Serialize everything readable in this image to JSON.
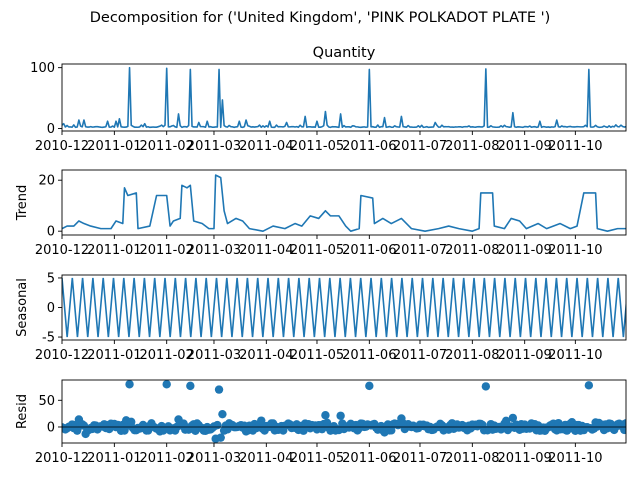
{
  "suptitle": "Decomposition for ('United Kingdom', 'PINK  POLKADOT PLATE ')",
  "chart_data": [
    {
      "type": "line",
      "title": "Quantity",
      "ylabel": "",
      "yticks": [
        0,
        100
      ],
      "ylim": [
        -4,
        106
      ],
      "xlim": [
        "2010-12-01",
        "2011-10-31"
      ],
      "xticks": [
        "2010-12",
        "2011-01",
        "2011-02",
        "2011-03",
        "2011-04",
        "2011-05",
        "2011-06",
        "2011-07",
        "2011-08",
        "2011-09",
        "2011-10"
      ],
      "color": "#1f77b4",
      "baseline": 2,
      "spikes": [
        {
          "x": "2010-12-02",
          "y": 8
        },
        {
          "x": "2010-12-08",
          "y": 6
        },
        {
          "x": "2010-12-11",
          "y": 14
        },
        {
          "x": "2010-12-14",
          "y": 14
        },
        {
          "x": "2010-12-28",
          "y": 12
        },
        {
          "x": "2011-01-02",
          "y": 12
        },
        {
          "x": "2011-01-04",
          "y": 16
        },
        {
          "x": "2011-01-10",
          "y": 100
        },
        {
          "x": "2011-01-19",
          "y": 8
        },
        {
          "x": "2011-02-01",
          "y": 99
        },
        {
          "x": "2011-02-08",
          "y": 24
        },
        {
          "x": "2011-02-15",
          "y": 97
        },
        {
          "x": "2011-02-20",
          "y": 10
        },
        {
          "x": "2011-02-25",
          "y": 12
        },
        {
          "x": "2011-03-04",
          "y": 97
        },
        {
          "x": "2011-03-06",
          "y": 47
        },
        {
          "x": "2011-03-16",
          "y": 12
        },
        {
          "x": "2011-03-20",
          "y": 14
        },
        {
          "x": "2011-04-03",
          "y": 12
        },
        {
          "x": "2011-04-13",
          "y": 10
        },
        {
          "x": "2011-04-24",
          "y": 20
        },
        {
          "x": "2011-05-01",
          "y": 12
        },
        {
          "x": "2011-05-06",
          "y": 28
        },
        {
          "x": "2011-05-15",
          "y": 24
        },
        {
          "x": "2011-06-01",
          "y": 97
        },
        {
          "x": "2011-06-10",
          "y": 18
        },
        {
          "x": "2011-06-20",
          "y": 20
        },
        {
          "x": "2011-07-10",
          "y": 10
        },
        {
          "x": "2011-08-09",
          "y": 98
        },
        {
          "x": "2011-08-25",
          "y": 26
        },
        {
          "x": "2011-09-10",
          "y": 12
        },
        {
          "x": "2011-09-20",
          "y": 14
        },
        {
          "x": "2011-10-09",
          "y": 97
        },
        {
          "x": "2011-10-25",
          "y": 6
        }
      ]
    },
    {
      "type": "line",
      "title": "",
      "ylabel": "Trend",
      "yticks": [
        0,
        20
      ],
      "ylim": [
        -1.5,
        24
      ],
      "xlim": [
        "2010-12-01",
        "2011-10-31"
      ],
      "xticks": [
        "2010-12",
        "2011-01",
        "2011-02",
        "2011-03",
        "2011-04",
        "2011-05",
        "2011-06",
        "2011-07",
        "2011-08",
        "2011-09",
        "2011-10"
      ],
      "color": "#1f77b4",
      "points": [
        {
          "x": "2010-12-01",
          "y": 1
        },
        {
          "x": "2010-12-04",
          "y": 2
        },
        {
          "x": "2010-12-08",
          "y": 2
        },
        {
          "x": "2010-12-11",
          "y": 4
        },
        {
          "x": "2010-12-14",
          "y": 3
        },
        {
          "x": "2010-12-18",
          "y": 2
        },
        {
          "x": "2010-12-24",
          "y": 1
        },
        {
          "x": "2010-12-30",
          "y": 1
        },
        {
          "x": "2011-01-02",
          "y": 4
        },
        {
          "x": "2011-01-06",
          "y": 3
        },
        {
          "x": "2011-01-07",
          "y": 17
        },
        {
          "x": "2011-01-09",
          "y": 14
        },
        {
          "x": "2011-01-14",
          "y": 15
        },
        {
          "x": "2011-01-15",
          "y": 1
        },
        {
          "x": "2011-01-22",
          "y": 2
        },
        {
          "x": "2011-01-26",
          "y": 14
        },
        {
          "x": "2011-02-01",
          "y": 14
        },
        {
          "x": "2011-02-03",
          "y": 2
        },
        {
          "x": "2011-02-05",
          "y": 4
        },
        {
          "x": "2011-02-09",
          "y": 5
        },
        {
          "x": "2011-02-10",
          "y": 18
        },
        {
          "x": "2011-02-13",
          "y": 17
        },
        {
          "x": "2011-02-15",
          "y": 18
        },
        {
          "x": "2011-02-17",
          "y": 4
        },
        {
          "x": "2011-02-22",
          "y": 3
        },
        {
          "x": "2011-02-26",
          "y": 1
        },
        {
          "x": "2011-03-01",
          "y": 1
        },
        {
          "x": "2011-03-02",
          "y": 22
        },
        {
          "x": "2011-03-05",
          "y": 21
        },
        {
          "x": "2011-03-07",
          "y": 8
        },
        {
          "x": "2011-03-09",
          "y": 3
        },
        {
          "x": "2011-03-14",
          "y": 5
        },
        {
          "x": "2011-03-18",
          "y": 4
        },
        {
          "x": "2011-03-22",
          "y": 1
        },
        {
          "x": "2011-03-30",
          "y": 0
        },
        {
          "x": "2011-04-05",
          "y": 2
        },
        {
          "x": "2011-04-12",
          "y": 1
        },
        {
          "x": "2011-04-18",
          "y": 3
        },
        {
          "x": "2011-04-22",
          "y": 2
        },
        {
          "x": "2011-04-27",
          "y": 6
        },
        {
          "x": "2011-05-02",
          "y": 5
        },
        {
          "x": "2011-05-06",
          "y": 8
        },
        {
          "x": "2011-05-09",
          "y": 6
        },
        {
          "x": "2011-05-14",
          "y": 6
        },
        {
          "x": "2011-05-18",
          "y": 2
        },
        {
          "x": "2011-05-21",
          "y": 0
        },
        {
          "x": "2011-05-26",
          "y": 1
        },
        {
          "x": "2011-05-27",
          "y": 14
        },
        {
          "x": "2011-06-03",
          "y": 13
        },
        {
          "x": "2011-06-04",
          "y": 3
        },
        {
          "x": "2011-06-09",
          "y": 5
        },
        {
          "x": "2011-06-14",
          "y": 3
        },
        {
          "x": "2011-06-20",
          "y": 5
        },
        {
          "x": "2011-06-26",
          "y": 1
        },
        {
          "x": "2011-07-04",
          "y": 0
        },
        {
          "x": "2011-07-12",
          "y": 1
        },
        {
          "x": "2011-07-18",
          "y": 2
        },
        {
          "x": "2011-07-24",
          "y": 1
        },
        {
          "x": "2011-08-01",
          "y": 0
        },
        {
          "x": "2011-08-05",
          "y": 1
        },
        {
          "x": "2011-08-06",
          "y": 15
        },
        {
          "x": "2011-08-13",
          "y": 15
        },
        {
          "x": "2011-08-14",
          "y": 2
        },
        {
          "x": "2011-08-20",
          "y": 1
        },
        {
          "x": "2011-08-24",
          "y": 5
        },
        {
          "x": "2011-08-29",
          "y": 4
        },
        {
          "x": "2011-09-02",
          "y": 1
        },
        {
          "x": "2011-09-09",
          "y": 3
        },
        {
          "x": "2011-09-14",
          "y": 1
        },
        {
          "x": "2011-09-22",
          "y": 3
        },
        {
          "x": "2011-09-28",
          "y": 1
        },
        {
          "x": "2011-10-02",
          "y": 2
        },
        {
          "x": "2011-10-06",
          "y": 15
        },
        {
          "x": "2011-10-13",
          "y": 15
        },
        {
          "x": "2011-10-14",
          "y": 1
        },
        {
          "x": "2011-10-20",
          "y": 0
        },
        {
          "x": "2011-10-26",
          "y": 1
        },
        {
          "x": "2011-10-31",
          "y": 1
        }
      ]
    },
    {
      "type": "line",
      "title": "",
      "ylabel": "Seasonal",
      "yticks": [
        -5,
        0,
        5
      ],
      "ylim": [
        -5.5,
        5.5
      ],
      "xlim": [
        "2010-12-01",
        "2011-10-31"
      ],
      "xticks": [
        "2010-12",
        "2011-01",
        "2011-02",
        "2011-03",
        "2011-04",
        "2011-05",
        "2011-06",
        "2011-07",
        "2011-08",
        "2011-09",
        "2011-10"
      ],
      "color": "#1f77b4",
      "wave": {
        "period_days": 6.1,
        "min": -5,
        "max": 5,
        "start": "2010-12-01",
        "start_phase": 0.9
      }
    },
    {
      "type": "scatter",
      "title": "",
      "ylabel": "Resid",
      "yticks": [
        0,
        50
      ],
      "ylim": [
        -30,
        88
      ],
      "xlim": [
        "2010-12-01",
        "2011-10-31"
      ],
      "xticks": [
        "2010-12",
        "2011-01",
        "2011-02",
        "2011-03",
        "2011-04",
        "2011-05",
        "2011-06",
        "2011-07",
        "2011-08",
        "2011-09",
        "2011-10"
      ],
      "color": "#1f77b4",
      "outliers": [
        {
          "x": "2011-01-10",
          "y": 80
        },
        {
          "x": "2011-02-01",
          "y": 80
        },
        {
          "x": "2011-02-15",
          "y": 77
        },
        {
          "x": "2011-03-04",
          "y": 70
        },
        {
          "x": "2011-03-06",
          "y": 24
        },
        {
          "x": "2011-05-06",
          "y": 22
        },
        {
          "x": "2011-05-15",
          "y": 21
        },
        {
          "x": "2011-06-01",
          "y": 77
        },
        {
          "x": "2011-06-20",
          "y": 16
        },
        {
          "x": "2011-08-09",
          "y": 76
        },
        {
          "x": "2011-08-25",
          "y": 17
        },
        {
          "x": "2011-10-09",
          "y": 78
        },
        {
          "x": "2011-02-08",
          "y": 14
        },
        {
          "x": "2010-12-11",
          "y": 14
        },
        {
          "x": "2011-03-02",
          "y": -22
        },
        {
          "x": "2011-03-05",
          "y": -20
        }
      ],
      "noise_amplitude": 9
    }
  ]
}
